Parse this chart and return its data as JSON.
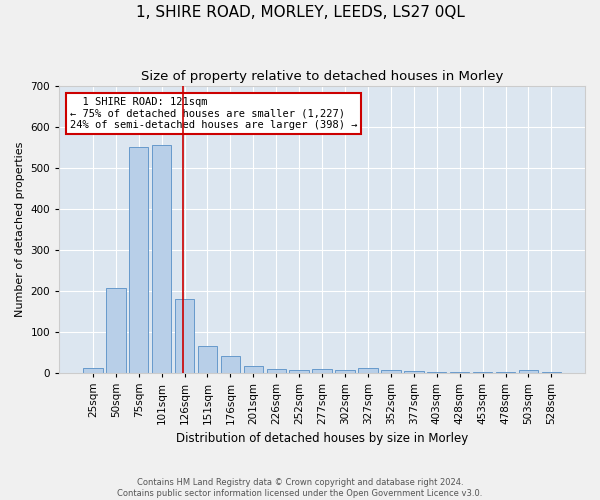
{
  "title": "1, SHIRE ROAD, MORLEY, LEEDS, LS27 0QL",
  "subtitle": "Size of property relative to detached houses in Morley",
  "xlabel": "Distribution of detached houses by size in Morley",
  "ylabel": "Number of detached properties",
  "footer_line1": "Contains HM Land Registry data © Crown copyright and database right 2024.",
  "footer_line2": "Contains public sector information licensed under the Open Government Licence v3.0.",
  "categories": [
    "25sqm",
    "50sqm",
    "75sqm",
    "101sqm",
    "126sqm",
    "151sqm",
    "176sqm",
    "201sqm",
    "226sqm",
    "252sqm",
    "277sqm",
    "302sqm",
    "327sqm",
    "352sqm",
    "377sqm",
    "403sqm",
    "428sqm",
    "453sqm",
    "478sqm",
    "503sqm",
    "528sqm"
  ],
  "values": [
    10,
    205,
    550,
    555,
    180,
    65,
    40,
    15,
    8,
    5,
    8,
    5,
    12,
    5,
    3,
    1,
    1,
    1,
    1,
    5,
    1
  ],
  "bar_color": "#b8cfe8",
  "bar_edge_color": "#6699cc",
  "red_line_x": 3.93,
  "red_line_color": "#cc0000",
  "annotation_text": "  1 SHIRE ROAD: 121sqm\n← 75% of detached houses are smaller (1,227)\n24% of semi-detached houses are larger (398) →",
  "annotation_box_color": "#ffffff",
  "annotation_box_edge": "#cc0000",
  "ylim": [
    0,
    700
  ],
  "yticks": [
    0,
    100,
    200,
    300,
    400,
    500,
    600,
    700
  ],
  "background_color": "#dce6f0",
  "fig_background_color": "#f0f0f0",
  "title_fontsize": 11,
  "subtitle_fontsize": 9.5,
  "tick_fontsize": 7.5,
  "ylabel_fontsize": 8,
  "xlabel_fontsize": 8.5
}
